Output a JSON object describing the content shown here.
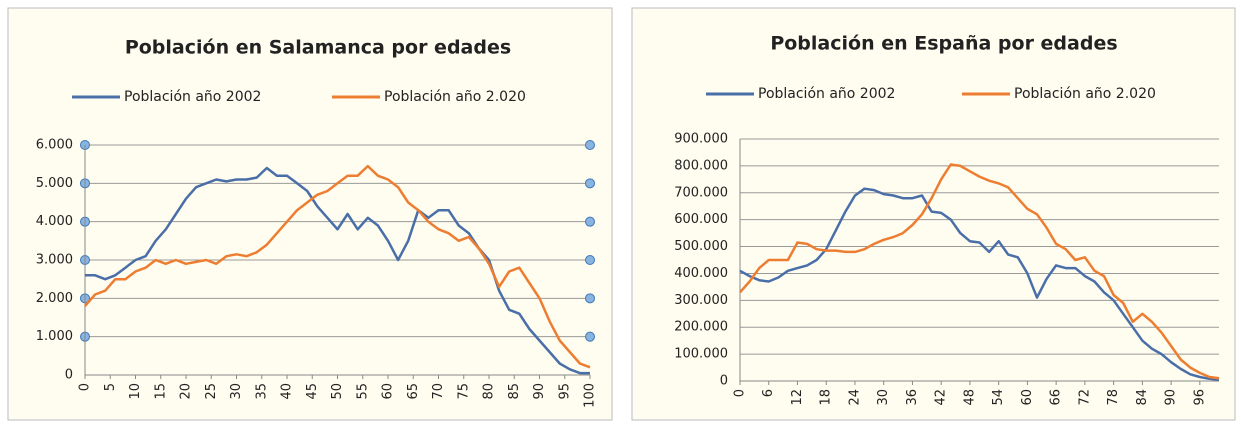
{
  "chart_data": [
    {
      "type": "line",
      "title": "Población en Salamanca por edades",
      "x": [
        0,
        2,
        4,
        6,
        8,
        10,
        12,
        14,
        16,
        18,
        20,
        22,
        24,
        26,
        28,
        30,
        32,
        34,
        36,
        38,
        40,
        42,
        44,
        46,
        48,
        50,
        52,
        54,
        56,
        58,
        60,
        62,
        64,
        66,
        68,
        70,
        72,
        74,
        76,
        78,
        80,
        82,
        84,
        86,
        88,
        90,
        92,
        94,
        96,
        98,
        100
      ],
      "series": [
        {
          "name": "Población año 2002",
          "color": "#4a6fa8",
          "values": [
            2600,
            2600,
            2500,
            2600,
            2800,
            3000,
            3100,
            3500,
            3800,
            4200,
            4600,
            4900,
            5000,
            5100,
            5050,
            5100,
            5100,
            5150,
            5400,
            5200,
            5200,
            5000,
            4800,
            4400,
            4100,
            3800,
            4200,
            3800,
            4100,
            3900,
            3500,
            3000,
            3500,
            4300,
            4100,
            4300,
            4300,
            3900,
            3700,
            3300,
            3000,
            2200,
            1700,
            1600,
            1200,
            900,
            600,
            300,
            150,
            50,
            50
          ]
        },
        {
          "name": "Población año 2.020",
          "color": "#ed7d31",
          "values": [
            1800,
            2100,
            2200,
            2500,
            2500,
            2700,
            2800,
            3000,
            2900,
            3000,
            2900,
            2950,
            3000,
            2900,
            3100,
            3150,
            3100,
            3200,
            3400,
            3700,
            4000,
            4300,
            4500,
            4700,
            4800,
            5000,
            5200,
            5200,
            5450,
            5200,
            5100,
            4900,
            4500,
            4300,
            4000,
            3800,
            3700,
            3500,
            3600,
            3300,
            2900,
            2300,
            2700,
            2800,
            2400,
            2000,
            1400,
            900,
            600,
            300,
            200
          ]
        }
      ],
      "xlim": [
        0,
        100
      ],
      "xticks": [
        0,
        5,
        10,
        15,
        20,
        25,
        30,
        35,
        40,
        45,
        50,
        55,
        60,
        65,
        70,
        75,
        80,
        85,
        90,
        95,
        100
      ],
      "ylim": [
        0,
        6000
      ],
      "yticks": [
        0,
        {
          "value": 1000,
          "label": "1.000"
        },
        {
          "value": 2000,
          "label": "2.000"
        },
        {
          "value": 3000,
          "label": "3.000"
        },
        {
          "value": 4000,
          "label": "4.000"
        },
        {
          "value": 5000,
          "label": "5.000"
        },
        {
          "value": 6000,
          "label": "6.000"
        }
      ],
      "grid": true,
      "legend": "top"
    },
    {
      "type": "line",
      "title": "Población en España por edades",
      "x": [
        0,
        2,
        4,
        6,
        8,
        10,
        12,
        14,
        16,
        18,
        20,
        22,
        24,
        26,
        28,
        30,
        32,
        34,
        36,
        38,
        40,
        42,
        44,
        46,
        48,
        50,
        52,
        54,
        56,
        58,
        60,
        62,
        64,
        66,
        68,
        70,
        72,
        74,
        76,
        78,
        80,
        82,
        84,
        86,
        88,
        90,
        92,
        94,
        96,
        98,
        100
      ],
      "series": [
        {
          "name": "Población año 2002",
          "color": "#4a6fa8",
          "values": [
            410000,
            390000,
            375000,
            370000,
            385000,
            410000,
            420000,
            430000,
            450000,
            490000,
            560000,
            630000,
            690000,
            715000,
            710000,
            695000,
            690000,
            680000,
            680000,
            690000,
            630000,
            625000,
            600000,
            550000,
            520000,
            515000,
            480000,
            520000,
            470000,
            460000,
            400000,
            310000,
            380000,
            430000,
            420000,
            420000,
            390000,
            370000,
            330000,
            300000,
            250000,
            200000,
            150000,
            120000,
            100000,
            70000,
            45000,
            25000,
            15000,
            8000,
            5000
          ]
        },
        {
          "name": "Población año 2.020",
          "color": "#ed7d31",
          "values": [
            330000,
            370000,
            420000,
            450000,
            450000,
            450000,
            515000,
            510000,
            490000,
            485000,
            485000,
            480000,
            480000,
            490000,
            510000,
            525000,
            535000,
            550000,
            580000,
            620000,
            680000,
            750000,
            805000,
            800000,
            780000,
            760000,
            745000,
            735000,
            720000,
            680000,
            640000,
            620000,
            570000,
            510000,
            490000,
            450000,
            460000,
            410000,
            390000,
            320000,
            290000,
            220000,
            250000,
            220000,
            180000,
            130000,
            80000,
            50000,
            30000,
            15000,
            10000
          ]
        }
      ],
      "xlim": [
        0,
        100
      ],
      "xticks": [
        0,
        6,
        12,
        18,
        24,
        30,
        36,
        42,
        48,
        54,
        60,
        66,
        72,
        78,
        84,
        90,
        96
      ],
      "ylim": [
        0,
        900000
      ],
      "yticks": [
        0,
        {
          "value": 100000,
          "label": "100.000"
        },
        {
          "value": 200000,
          "label": "200.000"
        },
        {
          "value": 300000,
          "label": "300.000"
        },
        {
          "value": 400000,
          "label": "400.000"
        },
        {
          "value": 500000,
          "label": "500.000"
        },
        {
          "value": 600000,
          "label": "600.000"
        },
        {
          "value": 700000,
          "label": "700.000"
        },
        {
          "value": 800000,
          "label": "800.000"
        },
        {
          "value": 900000,
          "label": "900.000"
        }
      ],
      "grid": true,
      "legend": "top"
    }
  ]
}
